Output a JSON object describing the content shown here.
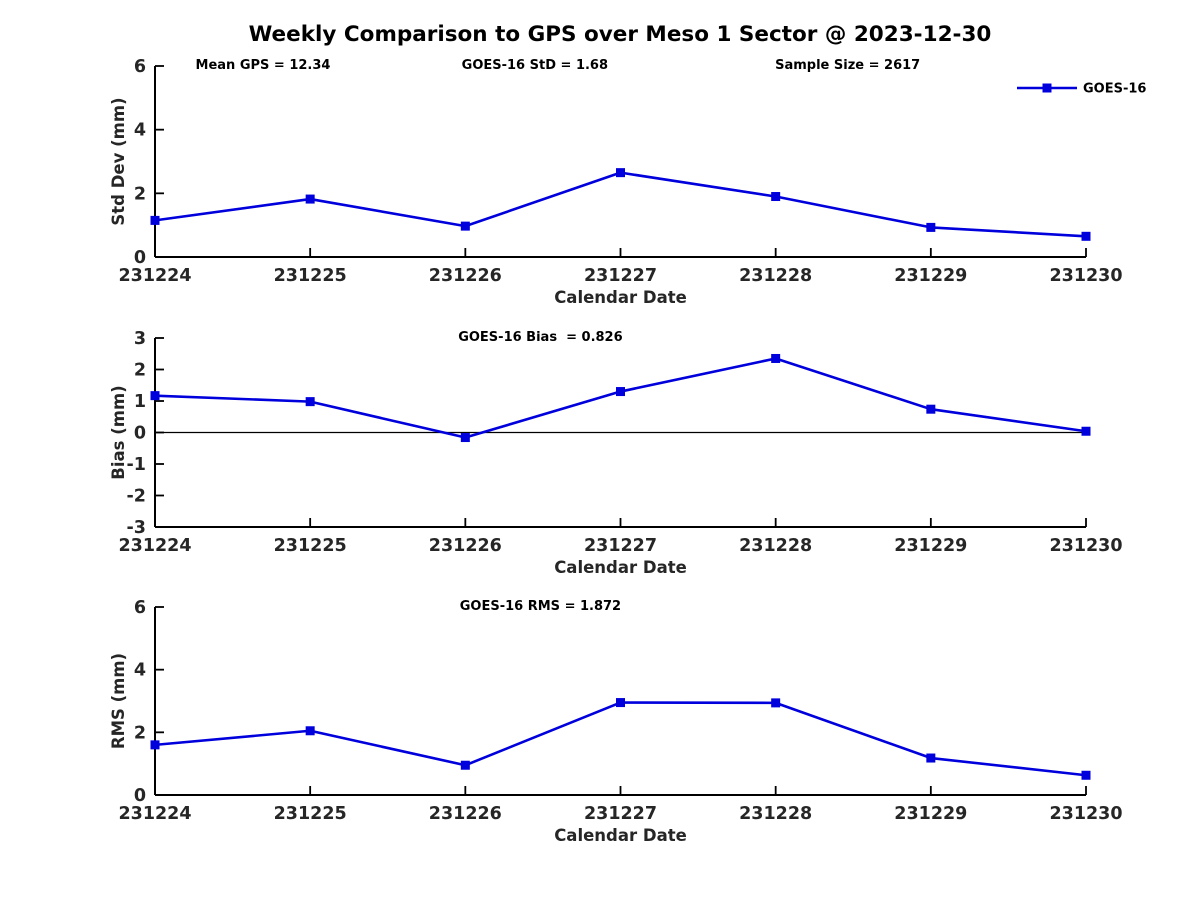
{
  "title": "Weekly Comparison to GPS over Meso 1 Sector @ 2023-12-30",
  "legend": {
    "label": "GOES-16"
  },
  "colors": {
    "series": "#0000DD",
    "text": "#262626",
    "axis": "#000000",
    "annotation": "#000000"
  },
  "chart_data": [
    {
      "type": "line",
      "categories": [
        "231224",
        "231225",
        "231226",
        "231227",
        "231228",
        "231229",
        "231230"
      ],
      "series": [
        {
          "name": "GOES-16",
          "values": [
            1.15,
            1.82,
            0.97,
            2.65,
            1.9,
            0.93,
            0.65
          ]
        }
      ],
      "xlabel": "Calendar Date",
      "ylabel": "Std Dev (mm)",
      "ylim": [
        0,
        6
      ],
      "yticks": [
        0,
        2,
        4,
        6
      ],
      "zero_line": false,
      "grid": false,
      "legend": true,
      "legend_position": "upper-right",
      "annotations": [
        {
          "text": "Mean GPS = 12.34",
          "xfrac": 0.116
        },
        {
          "text": "GOES-16 StD = 1.68",
          "xfrac": 0.408
        },
        {
          "text": "Sample Size = 2617",
          "xfrac": 0.744
        }
      ]
    },
    {
      "type": "line",
      "categories": [
        "231224",
        "231225",
        "231226",
        "231227",
        "231228",
        "231229",
        "231230"
      ],
      "series": [
        {
          "name": "GOES-16",
          "values": [
            1.17,
            0.98,
            -0.16,
            1.3,
            2.35,
            0.74,
            0.04
          ]
        }
      ],
      "xlabel": "Calendar Date",
      "ylabel": "Bias (mm)",
      "ylim": [
        -3,
        3
      ],
      "yticks": [
        -3,
        -2,
        -1,
        0,
        1,
        2,
        3
      ],
      "zero_line": true,
      "grid": false,
      "legend": false,
      "annotations": [
        {
          "text": "GOES-16 Bias  = 0.826",
          "xfrac": 0.414
        }
      ]
    },
    {
      "type": "line",
      "categories": [
        "231224",
        "231225",
        "231226",
        "231227",
        "231228",
        "231229",
        "231230"
      ],
      "series": [
        {
          "name": "GOES-16",
          "values": [
            1.6,
            2.05,
            0.95,
            2.95,
            2.94,
            1.18,
            0.63
          ]
        }
      ],
      "xlabel": "Calendar Date",
      "ylabel": "RMS (mm)",
      "ylim": [
        0,
        6
      ],
      "yticks": [
        0,
        2,
        4,
        6
      ],
      "zero_line": false,
      "grid": false,
      "legend": false,
      "annotations": [
        {
          "text": "GOES-16 RMS = 1.872",
          "xfrac": 0.414
        }
      ]
    }
  ]
}
